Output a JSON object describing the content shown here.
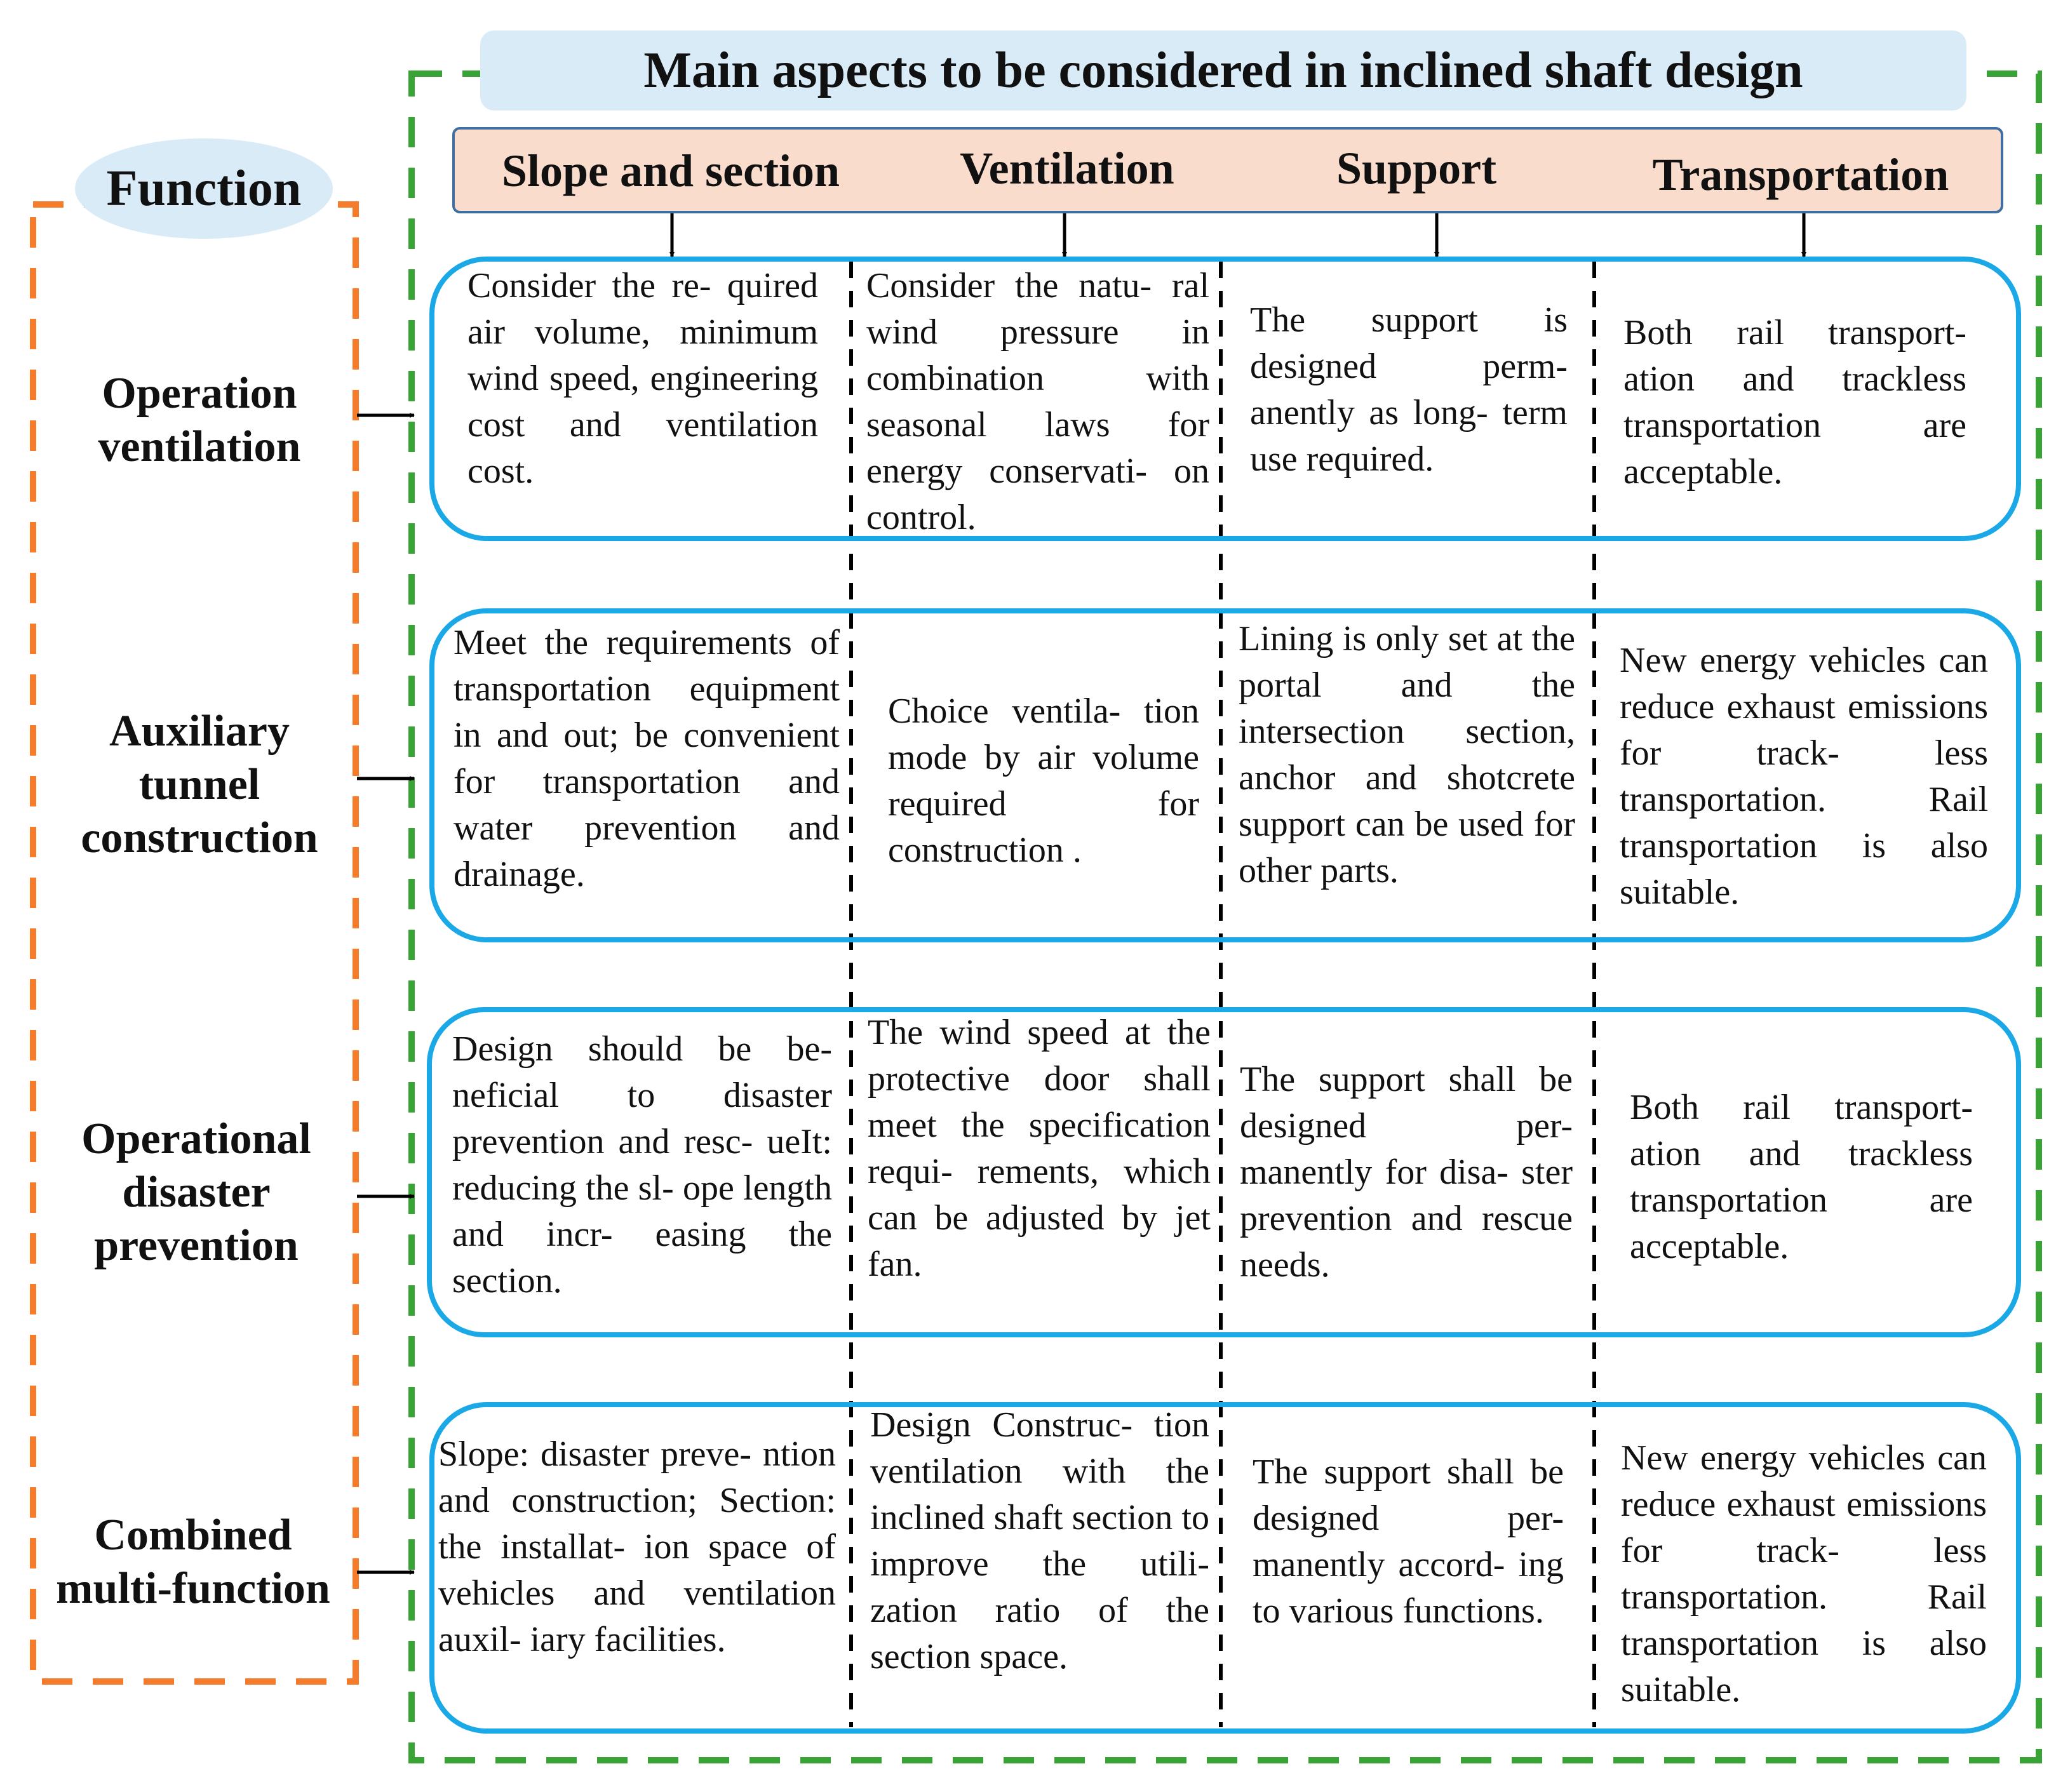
{
  "title": "Main aspects to be considered in inclined shaft design",
  "function_label": "Function",
  "headers": [
    "Slope and section",
    "Ventilation",
    "Support",
    "Transportation"
  ],
  "functions": [
    {
      "label": "Operation ventilation",
      "cells": [
        "Consider the re- quired air volume, minimum wind speed, engineering cost and ventilation cost.",
        "Consider the natu- ral wind pressure in combination with seasonal laws for energy conservati- on control.",
        "The support is designed perm- anently as long- term use required.",
        "Both rail transport- ation and trackless transportation are acceptable."
      ]
    },
    {
      "label": "Auxiliary tunnel construction",
      "cells": [
        "Meet the requirements of transportation equipment in and out; be convenient for transportation and water prevention and drainage.",
        "Choice ventila- tion mode by air volume required for construction .",
        "Lining is only set at the portal and the intersection section, anchor and shotcrete support can be used for other parts.",
        "New energy vehicles can reduce exhaust emissions for track- less transportation. Rail transportation is also suitable."
      ]
    },
    {
      "label": "Operational disaster prevention",
      "cells": [
        "Design should be be- neficial to disaster prevention and resc- ueIt: reducing the sl- ope length and incr- easing the section.",
        "The wind speed at the protective door shall meet the specification requi- rements, which can be adjusted by jet fan.",
        "The support shall be designed per- manently for disa- ster prevention and rescue needs.",
        "Both rail transport- ation and trackless transportation are acceptable."
      ]
    },
    {
      "label": "Combined multi-function",
      "cells": [
        "Slope: disaster preve- ntion and construction; Section: the installat- ion space of vehicles and ventilation auxil- iary facilities.",
        "Design Construc- tion ventilation with the inclined shaft section to improve the utili- zation ratio of the section space.",
        "The support shall be designed per- manently accord- ing to various functions.",
        "New energy vehicles can reduce exhaust emissions for track- less transportation. Rail transportation is also suitable."
      ]
    }
  ],
  "colors": {
    "outer_border": "#3aa336",
    "function_border": "#f47c2a",
    "row_border": "#1aa9e6",
    "banner_fill": "#d9ebf7",
    "header_fill": "#f9dccb",
    "header_border": "#3f6fa2"
  }
}
